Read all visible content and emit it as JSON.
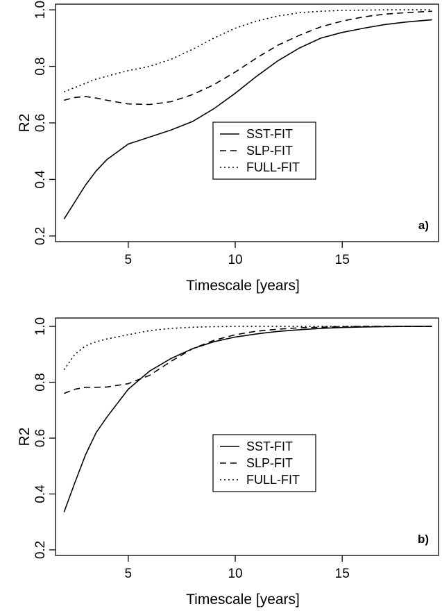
{
  "chart_data": [
    {
      "type": "line",
      "panel_label": "a)",
      "xlabel": "Timescale [years]",
      "ylabel": "R2",
      "xlim": [
        1.6,
        19.5
      ],
      "ylim": [
        0.18,
        1.02
      ],
      "xticks": [
        5,
        10,
        15
      ],
      "yticks": [
        0.2,
        0.4,
        0.6,
        0.8,
        1.0
      ],
      "ytick_labels": [
        "0.2",
        "0.4",
        "0.6",
        "0.8",
        "1.0"
      ],
      "legend_position": "center-right",
      "series": [
        {
          "name": "SST-FIT",
          "style": "solid",
          "x": [
            2,
            2.5,
            3,
            3.5,
            4,
            5,
            6,
            7,
            8,
            9,
            10,
            11,
            12,
            13,
            14,
            15,
            16,
            17,
            18,
            19.2
          ],
          "y": [
            0.26,
            0.32,
            0.38,
            0.43,
            0.47,
            0.525,
            0.55,
            0.575,
            0.605,
            0.65,
            0.705,
            0.765,
            0.82,
            0.865,
            0.9,
            0.92,
            0.935,
            0.948,
            0.957,
            0.965
          ]
        },
        {
          "name": "SLP-FIT",
          "style": "dashed",
          "x": [
            2,
            2.5,
            3,
            3.5,
            4,
            5,
            6,
            7,
            8,
            9,
            10,
            11,
            12,
            13,
            14,
            15,
            16,
            17,
            18,
            19.2
          ],
          "y": [
            0.68,
            0.69,
            0.693,
            0.688,
            0.68,
            0.667,
            0.665,
            0.675,
            0.7,
            0.735,
            0.78,
            0.83,
            0.875,
            0.91,
            0.94,
            0.96,
            0.975,
            0.985,
            0.99,
            0.995
          ]
        },
        {
          "name": "FULL-FIT",
          "style": "dotted",
          "x": [
            2,
            2.5,
            3,
            3.5,
            4,
            5,
            6,
            7,
            8,
            9,
            10,
            11,
            12,
            13,
            14,
            15,
            16,
            17,
            18,
            19.2
          ],
          "y": [
            0.71,
            0.725,
            0.74,
            0.755,
            0.765,
            0.785,
            0.8,
            0.825,
            0.86,
            0.9,
            0.935,
            0.96,
            0.978,
            0.99,
            0.995,
            0.998,
            0.999,
            1.0,
            1.0,
            1.0
          ]
        }
      ]
    },
    {
      "type": "line",
      "panel_label": "b)",
      "xlabel": "Timescale [years]",
      "ylabel": "R2",
      "xlim": [
        1.6,
        19.5
      ],
      "ylim": [
        0.18,
        1.03
      ],
      "xticks": [
        5,
        10,
        15
      ],
      "yticks": [
        0.2,
        0.4,
        0.6,
        0.8,
        1.0
      ],
      "ytick_labels": [
        "0.2",
        "0.4",
        "0.6",
        "0.8",
        "1.0"
      ],
      "legend_position": "center-right",
      "series": [
        {
          "name": "SST-FIT",
          "style": "solid",
          "x": [
            2,
            2.5,
            3,
            3.5,
            4,
            5,
            6,
            7,
            8,
            9,
            10,
            11,
            12,
            13,
            14,
            15,
            16,
            17,
            18,
            19.2
          ],
          "y": [
            0.335,
            0.44,
            0.54,
            0.62,
            0.675,
            0.775,
            0.84,
            0.885,
            0.92,
            0.945,
            0.962,
            0.973,
            0.982,
            0.988,
            0.993,
            0.996,
            0.998,
            0.999,
            1.0,
            1.0
          ]
        },
        {
          "name": "SLP-FIT",
          "style": "dashed",
          "x": [
            2,
            2.5,
            3,
            3.5,
            4,
            5,
            6,
            7,
            8,
            9,
            10,
            11,
            12,
            13,
            14,
            15,
            16,
            17,
            18,
            19.2
          ],
          "y": [
            0.76,
            0.775,
            0.782,
            0.782,
            0.783,
            0.795,
            0.825,
            0.875,
            0.92,
            0.95,
            0.97,
            0.983,
            0.99,
            0.995,
            0.997,
            0.999,
            1.0,
            1.0,
            1.0,
            1.0
          ]
        },
        {
          "name": "FULL-FIT",
          "style": "dotted",
          "x": [
            2,
            2.5,
            3,
            3.5,
            4,
            5,
            6,
            7,
            8,
            9,
            10,
            11,
            12,
            13,
            14,
            15,
            16,
            17,
            18,
            19.2
          ],
          "y": [
            0.845,
            0.9,
            0.93,
            0.945,
            0.955,
            0.97,
            0.985,
            0.993,
            0.997,
            0.999,
            1.0,
            1.0,
            1.0,
            1.0,
            1.0,
            1.0,
            1.0,
            1.0,
            1.0,
            1.0
          ]
        }
      ]
    }
  ]
}
